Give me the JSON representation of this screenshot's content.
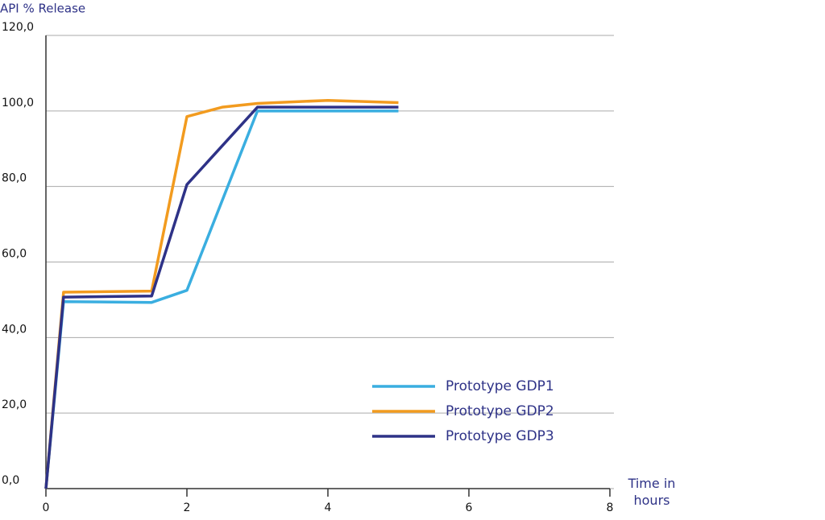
{
  "chart_data": {
    "type": "line",
    "y_label": "API % Release",
    "x_label": "Time in hours",
    "xlim": [
      0,
      8
    ],
    "xticks": [
      0,
      2,
      4,
      6,
      8
    ],
    "ylim": [
      0,
      120
    ],
    "yticks": [
      {
        "value": 0,
        "label": "0,0"
      },
      {
        "value": 20,
        "label": "20,0"
      },
      {
        "value": 40,
        "label": "40,0"
      },
      {
        "value": 60,
        "label": "60,0"
      },
      {
        "value": 80,
        "label": "80,0"
      },
      {
        "value": 100,
        "label": "100,0"
      },
      {
        "value": 120,
        "label": "120,0"
      }
    ],
    "grid": true,
    "series": [
      {
        "name": "Prototype GDP1",
        "color": "#3aaee0",
        "x": [
          0,
          0.25,
          1.5,
          2,
          3,
          5
        ],
        "values": [
          0,
          49.5,
          49.3,
          52.5,
          100,
          100
        ]
      },
      {
        "name": "Prototype GDP2",
        "color": "#f29b1f",
        "x": [
          0,
          0.25,
          1.5,
          2,
          2.5,
          3,
          4,
          5
        ],
        "values": [
          0,
          52,
          52.3,
          98.5,
          101,
          102,
          102.8,
          102.2
        ]
      },
      {
        "name": "Prototype GDP3",
        "color": "#2e3287",
        "x": [
          0,
          0.25,
          1.5,
          2,
          3,
          5
        ],
        "values": [
          0,
          50.7,
          51,
          80.5,
          101,
          101
        ]
      }
    ]
  }
}
